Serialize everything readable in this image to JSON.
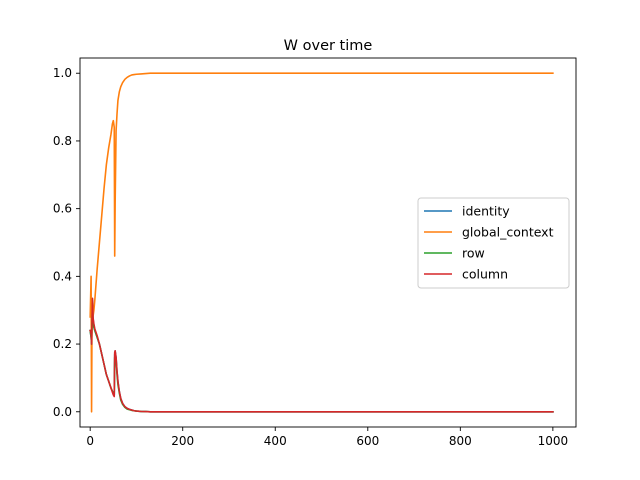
{
  "chart_data": {
    "type": "line",
    "title": "W over time",
    "xlabel": "",
    "ylabel": "",
    "xlim": [
      -22,
      1050
    ],
    "ylim": [
      -0.045,
      1.045
    ],
    "xticks": [
      0,
      200,
      400,
      600,
      800,
      1000
    ],
    "yticks": [
      0.0,
      0.2,
      0.4,
      0.6,
      0.8,
      1.0
    ],
    "xtick_labels": [
      "0",
      "200",
      "400",
      "600",
      "800",
      "1000"
    ],
    "ytick_labels": [
      "0.0",
      "0.2",
      "0.4",
      "0.6",
      "0.8",
      "1.0"
    ],
    "grid": false,
    "legend_position": "center-right",
    "series": [
      {
        "name": "identity",
        "color": "#1f77b4",
        "x": [
          0,
          2,
          3,
          4,
          5,
          6,
          8,
          10,
          15,
          20,
          25,
          30,
          35,
          40,
          45,
          50,
          52,
          53,
          54,
          56,
          58,
          60,
          63,
          66,
          70,
          75,
          80,
          85,
          90,
          95,
          100,
          110,
          120,
          130,
          150,
          200,
          300,
          400,
          500,
          600,
          700,
          800,
          900,
          1000
        ],
        "y": [
          0.24,
          0.22,
          0.2,
          0.26,
          0.33,
          0.28,
          0.25,
          0.24,
          0.22,
          0.2,
          0.17,
          0.14,
          0.11,
          0.09,
          0.07,
          0.055,
          0.05,
          0.17,
          0.18,
          0.16,
          0.12,
          0.09,
          0.06,
          0.04,
          0.025,
          0.015,
          0.01,
          0.007,
          0.005,
          0.003,
          0.002,
          0.001,
          0.0005,
          0.0,
          0.0,
          0.0,
          0.0,
          0.0,
          0.0,
          0.0,
          0.0,
          0.0,
          0.0,
          0.0
        ]
      },
      {
        "name": "global_context",
        "color": "#ff7f0e",
        "x": [
          0,
          2,
          3,
          4,
          5,
          6,
          8,
          10,
          15,
          20,
          25,
          30,
          35,
          40,
          45,
          48,
          50,
          52,
          53,
          54,
          56,
          58,
          60,
          63,
          66,
          70,
          75,
          80,
          85,
          90,
          95,
          100,
          110,
          120,
          130,
          150,
          200,
          300,
          400,
          500,
          600,
          700,
          800,
          900,
          1000
        ],
        "y": [
          0.28,
          0.4,
          0.0,
          0.27,
          0.25,
          0.28,
          0.3,
          0.33,
          0.42,
          0.5,
          0.58,
          0.66,
          0.73,
          0.78,
          0.82,
          0.85,
          0.86,
          0.84,
          0.46,
          0.62,
          0.83,
          0.88,
          0.92,
          0.945,
          0.96,
          0.972,
          0.982,
          0.988,
          0.992,
          0.995,
          0.996,
          0.997,
          0.998,
          0.999,
          1.0,
          1.0,
          1.0,
          1.0,
          1.0,
          1.0,
          1.0,
          1.0,
          1.0,
          1.0,
          1.0
        ]
      },
      {
        "name": "row",
        "color": "#2ca02c",
        "x": [
          0,
          2,
          3,
          4,
          5,
          6,
          8,
          10,
          15,
          20,
          25,
          30,
          35,
          40,
          45,
          50,
          52,
          53,
          54,
          56,
          58,
          60,
          63,
          66,
          70,
          75,
          80,
          85,
          90,
          95,
          100,
          110,
          120,
          130,
          150,
          200,
          300,
          400,
          500,
          600,
          700,
          800,
          900,
          1000
        ],
        "y": [
          0.24,
          0.22,
          0.2,
          0.26,
          0.32,
          0.27,
          0.25,
          0.24,
          0.22,
          0.2,
          0.17,
          0.14,
          0.11,
          0.09,
          0.07,
          0.055,
          0.05,
          0.16,
          0.17,
          0.15,
          0.11,
          0.08,
          0.055,
          0.035,
          0.022,
          0.013,
          0.008,
          0.006,
          0.004,
          0.003,
          0.002,
          0.001,
          0.0005,
          0.0,
          0.0,
          0.0,
          0.0,
          0.0,
          0.0,
          0.0,
          0.0,
          0.0,
          0.0,
          0.0
        ]
      },
      {
        "name": "column",
        "color": "#d62728",
        "x": [
          0,
          2,
          3,
          4,
          5,
          6,
          8,
          10,
          15,
          20,
          25,
          30,
          35,
          40,
          45,
          50,
          52,
          53,
          54,
          56,
          58,
          60,
          63,
          66,
          70,
          75,
          80,
          85,
          90,
          95,
          100,
          110,
          120,
          130,
          150,
          200,
          300,
          400,
          500,
          600,
          700,
          800,
          900,
          1000
        ],
        "y": [
          0.24,
          0.23,
          0.2,
          0.27,
          0.335,
          0.28,
          0.26,
          0.245,
          0.225,
          0.2,
          0.17,
          0.14,
          0.11,
          0.09,
          0.07,
          0.05,
          0.045,
          0.175,
          0.18,
          0.16,
          0.12,
          0.09,
          0.06,
          0.04,
          0.025,
          0.015,
          0.01,
          0.007,
          0.005,
          0.003,
          0.002,
          0.001,
          0.0005,
          0.0,
          0.0,
          0.0,
          0.0,
          0.0,
          0.0,
          0.0,
          0.0,
          0.0,
          0.0,
          0.0
        ]
      }
    ]
  }
}
